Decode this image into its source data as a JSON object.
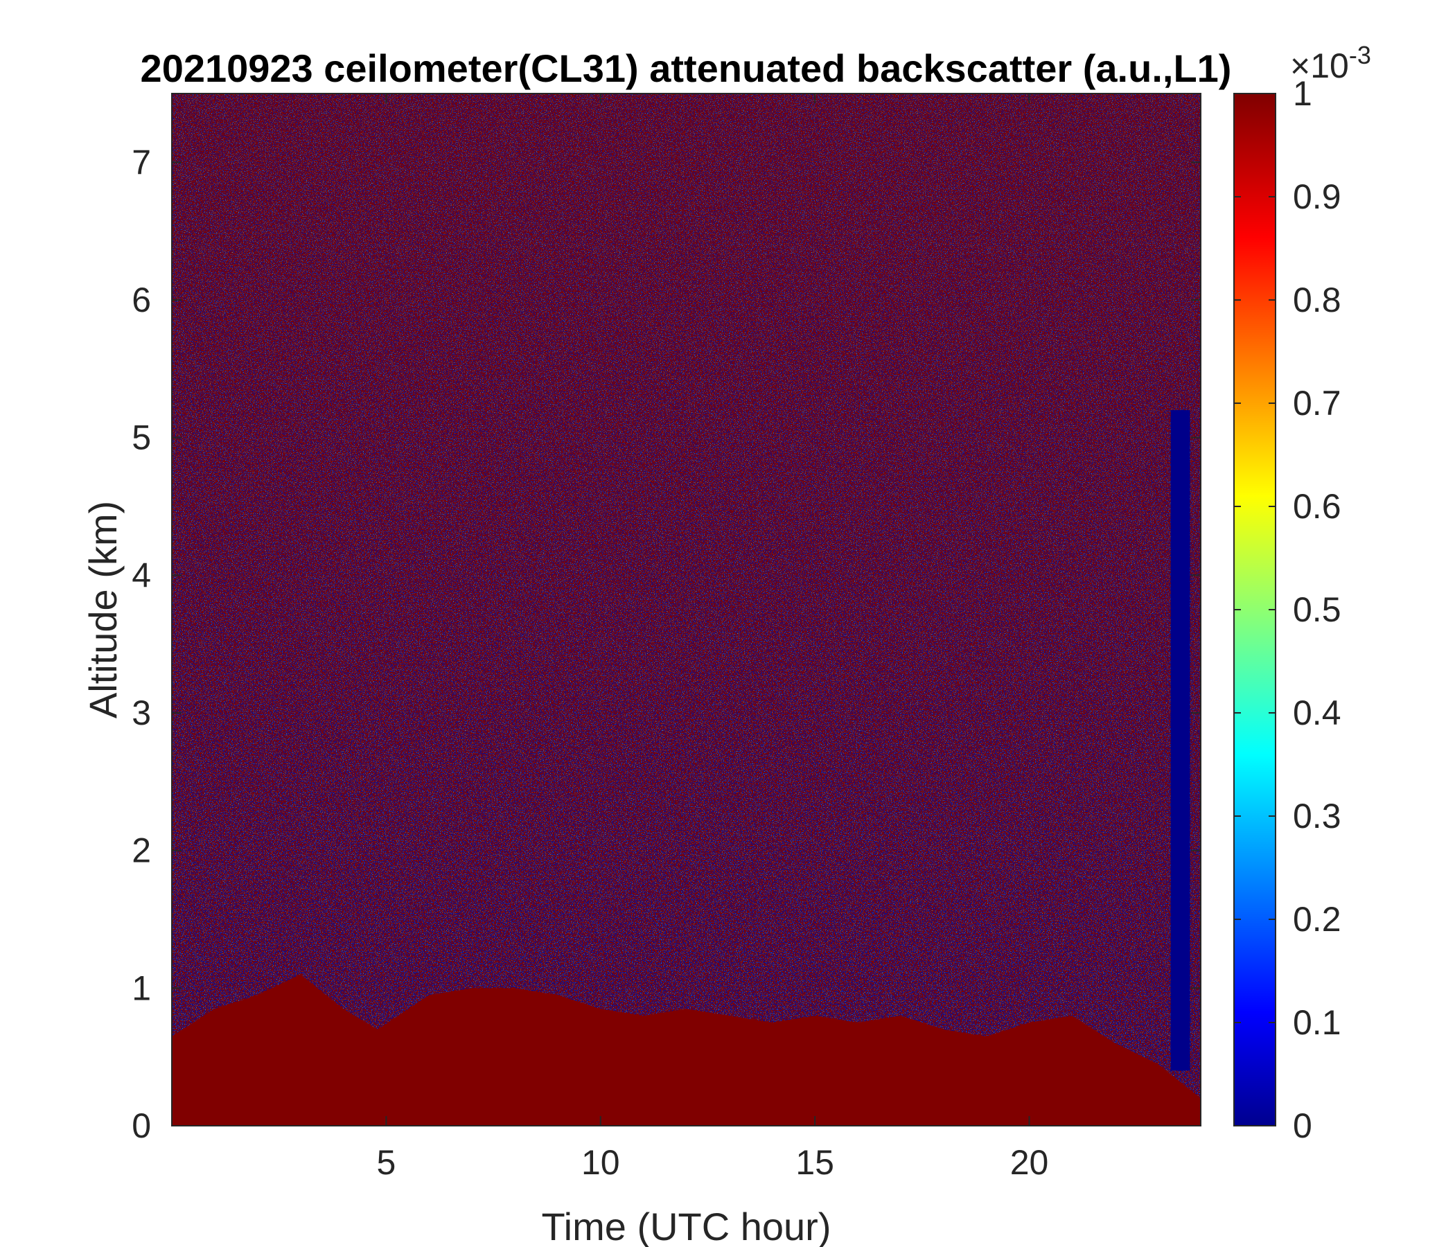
{
  "chart_data": {
    "type": "heatmap",
    "title": "20210923 ceilometer(CL31) attenuated backscatter (a.u.,L1)",
    "xlabel": "Time (UTC hour)",
    "ylabel": "Altitude (km)",
    "xlim": [
      0,
      24
    ],
    "ylim": [
      0,
      7.5
    ],
    "x_ticks": [
      5,
      10,
      15,
      20
    ],
    "y_ticks": [
      0,
      1,
      2,
      3,
      4,
      5,
      6,
      7
    ],
    "colorbar": {
      "colormap": "jet",
      "range": [
        0,
        0.001
      ],
      "exponent_label": "×10",
      "exponent_power": "-3",
      "ticks": [
        "0",
        "0.1",
        "0.2",
        "0.3",
        "0.4",
        "0.5",
        "0.6",
        "0.7",
        "0.8",
        "0.9",
        "1"
      ]
    },
    "boundary_layer_top_km": [
      {
        "x": 0,
        "y": 0.65
      },
      {
        "x": 1,
        "y": 0.85
      },
      {
        "x": 2,
        "y": 0.95
      },
      {
        "x": 3,
        "y": 1.1
      },
      {
        "x": 4,
        "y": 0.85
      },
      {
        "x": 4.8,
        "y": 0.7
      },
      {
        "x": 6,
        "y": 0.95
      },
      {
        "x": 7,
        "y": 1.0
      },
      {
        "x": 8,
        "y": 1.0
      },
      {
        "x": 9,
        "y": 0.95
      },
      {
        "x": 10,
        "y": 0.85
      },
      {
        "x": 11,
        "y": 0.8
      },
      {
        "x": 12,
        "y": 0.85
      },
      {
        "x": 13,
        "y": 0.8
      },
      {
        "x": 14,
        "y": 0.75
      },
      {
        "x": 15,
        "y": 0.8
      },
      {
        "x": 16,
        "y": 0.75
      },
      {
        "x": 17,
        "y": 0.8
      },
      {
        "x": 18,
        "y": 0.7
      },
      {
        "x": 19,
        "y": 0.65
      },
      {
        "x": 20,
        "y": 0.75
      },
      {
        "x": 21,
        "y": 0.8
      },
      {
        "x": 22,
        "y": 0.6
      },
      {
        "x": 23,
        "y": 0.45
      },
      {
        "x": 24,
        "y": 0.2
      }
    ]
  }
}
